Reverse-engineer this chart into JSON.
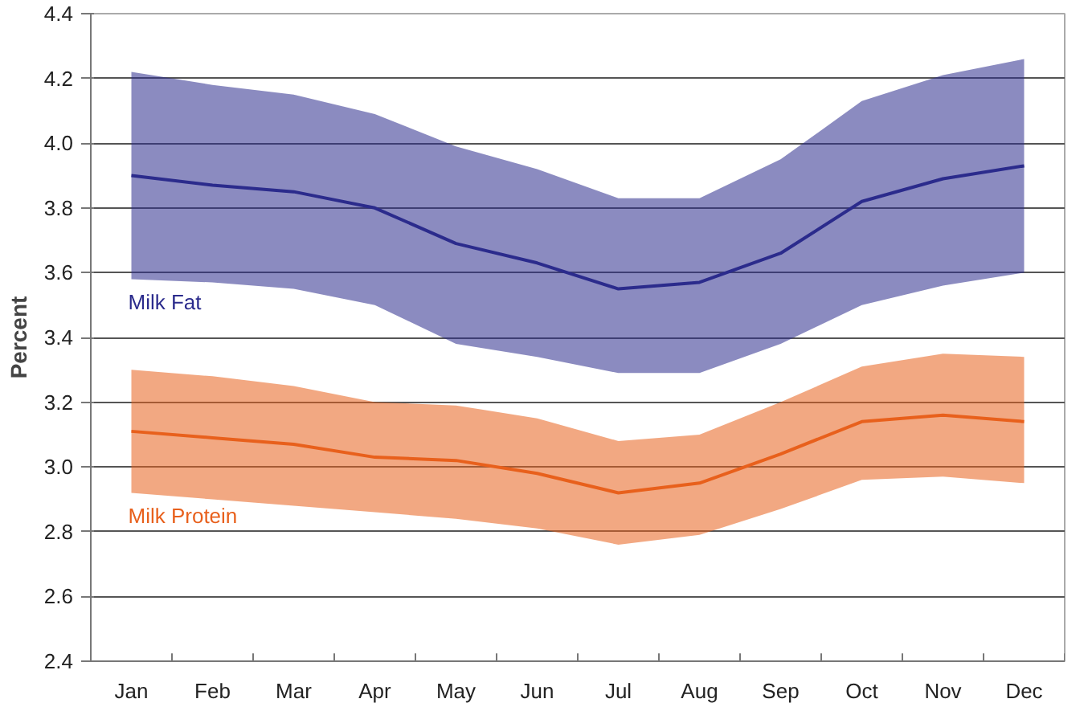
{
  "chart_data": {
    "type": "line",
    "ylabel": "Percent",
    "categories": [
      "Jan",
      "Feb",
      "Mar",
      "Apr",
      "May",
      "Jun",
      "Jul",
      "Aug",
      "Sep",
      "Oct",
      "Nov",
      "Dec"
    ],
    "series": [
      {
        "name": "Milk Fat",
        "color": "#2b2b8c",
        "values": [
          3.9,
          3.87,
          3.85,
          3.8,
          3.69,
          3.63,
          3.55,
          3.57,
          3.66,
          3.82,
          3.89,
          3.93
        ],
        "lower": [
          3.58,
          3.57,
          3.55,
          3.5,
          3.38,
          3.34,
          3.29,
          3.29,
          3.38,
          3.5,
          3.56,
          3.6
        ],
        "upper": [
          4.22,
          4.18,
          4.15,
          4.09,
          3.99,
          3.92,
          3.83,
          3.83,
          3.95,
          4.13,
          4.21,
          4.26
        ]
      },
      {
        "name": "Milk Protein",
        "color": "#e8601c",
        "values": [
          3.11,
          3.09,
          3.07,
          3.03,
          3.02,
          2.98,
          2.92,
          2.95,
          3.04,
          3.14,
          3.16,
          3.14
        ],
        "lower": [
          2.92,
          2.9,
          2.88,
          2.86,
          2.84,
          2.81,
          2.76,
          2.79,
          2.87,
          2.96,
          2.97,
          2.95
        ],
        "upper": [
          3.3,
          3.28,
          3.25,
          3.2,
          3.19,
          3.15,
          3.08,
          3.1,
          3.2,
          3.31,
          3.35,
          3.34
        ]
      }
    ],
    "ylim": [
      2.4,
      4.4
    ],
    "yticks": [
      2.4,
      2.6,
      2.8,
      {
        "value": 3,
        "label": "3.0"
      },
      3.2,
      3.4,
      3.6,
      3.8,
      {
        "value": 4,
        "label": "4.0"
      },
      4.2,
      4.4
    ],
    "grid": "y",
    "legend": false
  }
}
